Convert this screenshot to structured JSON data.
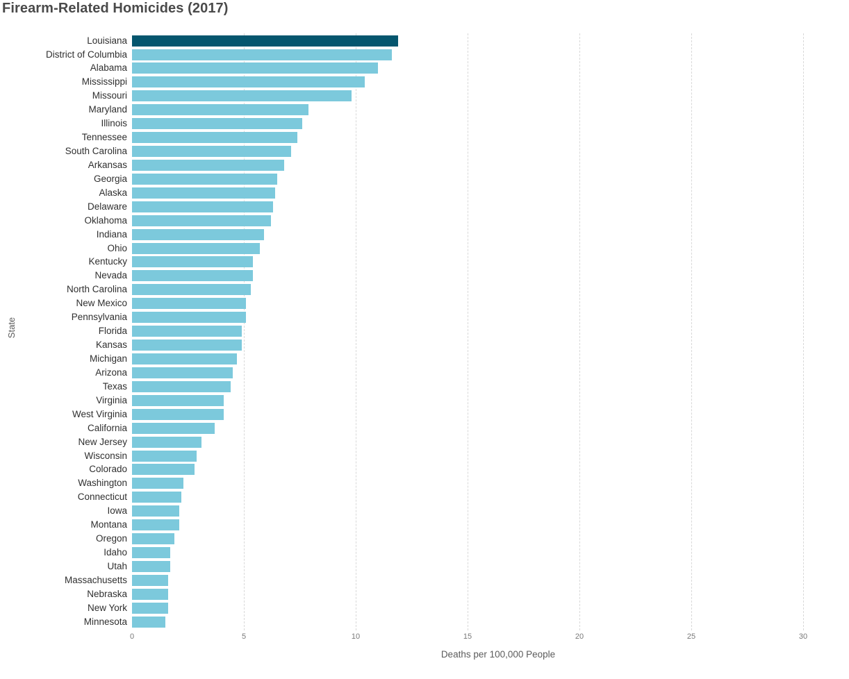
{
  "title": "Firearm-Related Homicides (2017)",
  "colors": {
    "highlight_bar": "#05566E",
    "default_bar": "#7CC9DC",
    "gridline": "#d8d8d8",
    "title_text": "#4a4a4a",
    "category_text": "#2f2f2f",
    "tick_text": "#787878",
    "axis_label_text": "#5b5b5b"
  },
  "chart_data": {
    "type": "bar",
    "orientation": "horizontal",
    "title": "Firearm-Related Homicides (2017)",
    "xlabel": "Deaths per 100,000 People",
    "ylabel": "State",
    "xlim": [
      0,
      30
    ],
    "x_ticks": [
      0,
      5,
      10,
      15,
      20,
      25,
      30
    ],
    "grid": "vertical dashed gridlines, no axis lines",
    "legend": "none",
    "sort": "descending by value",
    "highlight": {
      "category": "Louisiana",
      "color": "#05566E"
    },
    "bar_color": "#7CC9DC",
    "categories": [
      "Louisiana",
      "District of Columbia",
      "Alabama",
      "Mississippi",
      "Missouri",
      "Maryland",
      "Illinois",
      "Tennessee",
      "South Carolina",
      "Arkansas",
      "Georgia",
      "Alaska",
      "Delaware",
      "Oklahoma",
      "Indiana",
      "Ohio",
      "Kentucky",
      "Nevada",
      "North Carolina",
      "New Mexico",
      "Pennsylvania",
      "Florida",
      "Kansas",
      "Michigan",
      "Arizona",
      "Texas",
      "Virginia",
      "West Virginia",
      "California",
      "New Jersey",
      "Wisconsin",
      "Colorado",
      "Washington",
      "Connecticut",
      "Iowa",
      "Montana",
      "Oregon",
      "Idaho",
      "Utah",
      "Massachusetts",
      "Nebraska",
      "New York",
      "Minnesota"
    ],
    "values": [
      11.9,
      11.6,
      11.0,
      10.4,
      9.8,
      7.9,
      7.6,
      7.4,
      7.1,
      6.8,
      6.5,
      6.4,
      6.3,
      6.2,
      5.9,
      5.7,
      5.4,
      5.4,
      5.3,
      5.1,
      5.1,
      4.9,
      4.9,
      4.7,
      4.5,
      4.4,
      4.1,
      4.1,
      3.7,
      3.1,
      2.9,
      2.8,
      2.3,
      2.2,
      2.1,
      2.1,
      1.9,
      1.7,
      1.7,
      1.6,
      1.6,
      1.6,
      1.5
    ]
  }
}
